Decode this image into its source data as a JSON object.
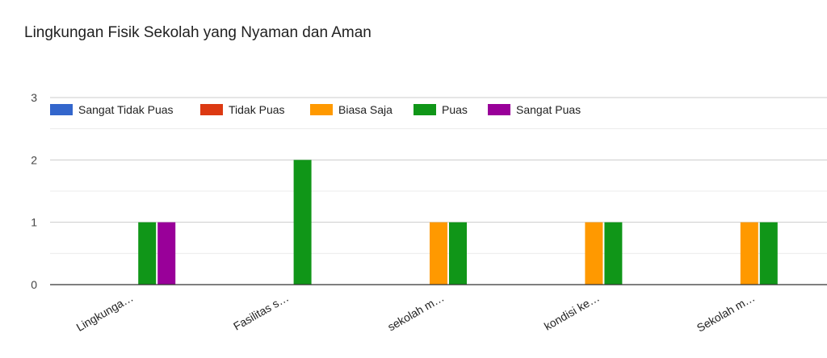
{
  "chart_data": {
    "type": "bar",
    "title": "Lingkungan Fisik Sekolah yang Nyaman dan Aman",
    "categories": [
      "Lingkunga…",
      "Fasilitas s…",
      "sekolah m…",
      "kondisi ke…",
      "Sekolah m…"
    ],
    "series": [
      {
        "name": "Sangat Tidak Puas",
        "color": "#3366cc",
        "values": [
          0,
          0,
          0,
          0,
          0
        ]
      },
      {
        "name": "Tidak Puas",
        "color": "#dc3912",
        "values": [
          0,
          0,
          0,
          0,
          0
        ]
      },
      {
        "name": "Biasa Saja",
        "color": "#ff9900",
        "values": [
          0,
          0,
          1,
          1,
          1
        ]
      },
      {
        "name": "Puas",
        "color": "#109618",
        "values": [
          1,
          2,
          1,
          1,
          1
        ]
      },
      {
        "name": "Sangat Puas",
        "color": "#990099",
        "values": [
          1,
          0,
          0,
          0,
          0
        ]
      }
    ],
    "ylim": [
      0,
      3
    ],
    "yticks": [
      0,
      1,
      2,
      3
    ],
    "xlabel": "",
    "ylabel": "",
    "legend_position": "top-left",
    "grid": true
  }
}
